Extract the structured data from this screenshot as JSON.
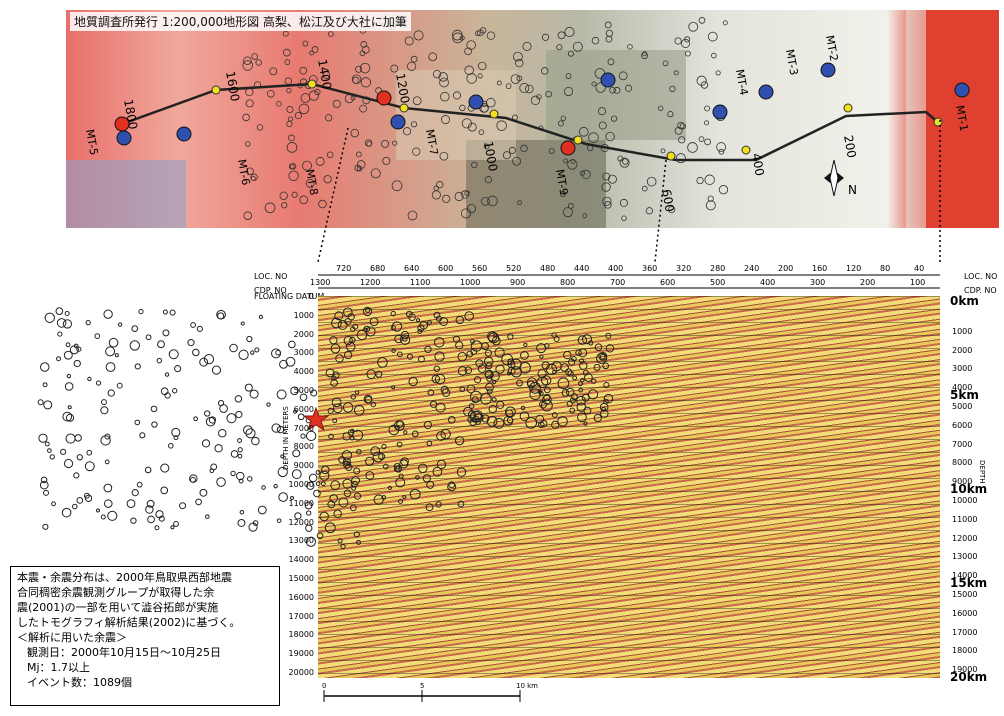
{
  "map": {
    "caption": "地質調査所発行 1:200,000地形図 高梨、松江及び大社に加筆",
    "station_labels": [
      "MT-1",
      "MT-2",
      "MT-3",
      "MT-4",
      "MT-8",
      "MT-6",
      "MT-5",
      "MT-7",
      "MT-9"
    ],
    "cdp_labels": [
      "1800",
      "1600",
      "1400",
      "1200",
      "1000",
      "600",
      "400",
      "200"
    ],
    "north_label": "N",
    "colors": {
      "red_station": "#e03020",
      "blue_station": "#3050b0",
      "yellow_cdp": "#f0e020",
      "line": "#222222"
    }
  },
  "section": {
    "header_labels": {
      "loc": "LOC. NO",
      "cdp": "CDP. NO",
      "datum": "FLOATING DATUM"
    },
    "loc_numbers": [
      "720",
      "680",
      "640",
      "600",
      "560",
      "520",
      "480",
      "440",
      "400",
      "360",
      "320",
      "280",
      "240",
      "200",
      "160",
      "120",
      "80",
      "40"
    ],
    "cdp_numbers": [
      "1300",
      "1200",
      "1100",
      "1000",
      "900",
      "800",
      "700",
      "600",
      "500",
      "400",
      "300",
      "200",
      "100"
    ],
    "depth_ticks_left": [
      "0",
      "1000",
      "2000",
      "3000",
      "4000",
      "5000",
      "6000",
      "7000",
      "8000",
      "9000",
      "10000",
      "11000",
      "12000",
      "13000",
      "14000",
      "15000",
      "16000",
      "17000",
      "18000",
      "19000",
      "20000"
    ],
    "depth_ticks_right": [
      "1000",
      "2000",
      "3000",
      "4000",
      "5000",
      "6000",
      "7000",
      "8000",
      "9000",
      "10000",
      "11000",
      "12000",
      "13000",
      "14000",
      "15000",
      "16000",
      "17000",
      "18000",
      "19000"
    ],
    "depth_km_labels": [
      "0km",
      "5km",
      "10km",
      "15km",
      "20km"
    ],
    "axis_label_left": "DEPTH IN METERS",
    "axis_label_right": "DEPTH",
    "scale": {
      "ticks": [
        "0",
        "5",
        "10 km"
      ]
    }
  },
  "legend": {
    "lines": [
      "本震・余震分布は、2000年鳥取県西部地震",
      "合同稠密余震観測グループが取得した余",
      "震(2001)の一部を用いて澁谷拓郎が実施",
      "したトモグラフィ解析結果(2002)に基づく。",
      "＜解析に用いた余震＞"
    ],
    "items": [
      "観測日：2000年10月15日～10月25日",
      "Mj：1.7以上",
      "イベント数：1089個"
    ]
  }
}
